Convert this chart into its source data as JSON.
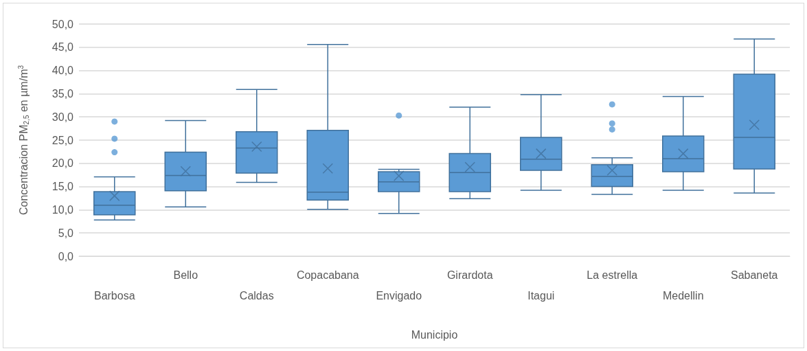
{
  "chart_data": {
    "type": "box",
    "xlabel": "Municipio",
    "ylabel": "Concentracion PM$_{2,5}$ en µm/m$^{3}$",
    "categories": [
      "Barbosa",
      "Bello",
      "Caldas",
      "Copacabana",
      "Envigado",
      "Girardota",
      "Itagui",
      "La estrella",
      "Medellin",
      "Sabaneta"
    ],
    "color": "#5b9bd5",
    "boxes": [
      {
        "low": 7.8,
        "q1": 8.9,
        "median": 11,
        "q3": 13.9,
        "high": 17.1,
        "mean": 13,
        "outliers": [
          29,
          25.3,
          22.4
        ]
      },
      {
        "low": 10.6,
        "q1": 14.1,
        "median": 17.4,
        "q3": 22.4,
        "high": 29.2,
        "mean": 18.3
      },
      {
        "low": 15.9,
        "q1": 17.9,
        "median": 23.3,
        "q3": 26.8,
        "high": 35.9,
        "mean": 23.6
      },
      {
        "low": 10.1,
        "q1": 12.1,
        "median": 13.8,
        "q3": 27.1,
        "high": 45.6,
        "mean": 18.9
      },
      {
        "low": 9.2,
        "q1": 13.9,
        "median": 16,
        "q3": 18.2,
        "high": 18.7,
        "mean": 17.3,
        "outliers": [
          30.3
        ]
      },
      {
        "low": 12.4,
        "q1": 13.9,
        "median": 18,
        "q3": 22.1,
        "high": 32.1,
        "mean": 19.2
      },
      {
        "low": 14.2,
        "q1": 18.5,
        "median": 20.9,
        "q3": 25.6,
        "high": 34.8,
        "mean": 22.1
      },
      {
        "low": 13.3,
        "q1": 15,
        "median": 17.2,
        "q3": 19.7,
        "high": 21.2,
        "mean": 18.5,
        "outliers": [
          32.7,
          28.6,
          27.3
        ]
      },
      {
        "low": 14.2,
        "q1": 18.2,
        "median": 21,
        "q3": 25.9,
        "high": 34.4,
        "mean": 22.1
      },
      {
        "low": 13.6,
        "q1": 18.8,
        "median": 25.6,
        "q3": 39.2,
        "high": 46.8,
        "mean": 28.3
      }
    ],
    "ylim": [
      0,
      50
    ],
    "yticks": [
      {
        "value": 0,
        "label": "0,0"
      },
      {
        "value": 5,
        "label": "5,0"
      },
      {
        "value": 10,
        "label": "10,0"
      },
      {
        "value": 15,
        "label": "15,0"
      },
      {
        "value": 20,
        "label": "20,0"
      },
      {
        "value": 25,
        "label": "25,0"
      },
      {
        "value": 30,
        "label": "30,0"
      },
      {
        "value": 35,
        "label": "35,0"
      },
      {
        "value": 40,
        "label": "40,0"
      },
      {
        "value": 45,
        "label": "45,0"
      },
      {
        "value": 50,
        "label": "50,0"
      }
    ],
    "grid": "y",
    "marker": "circle"
  }
}
